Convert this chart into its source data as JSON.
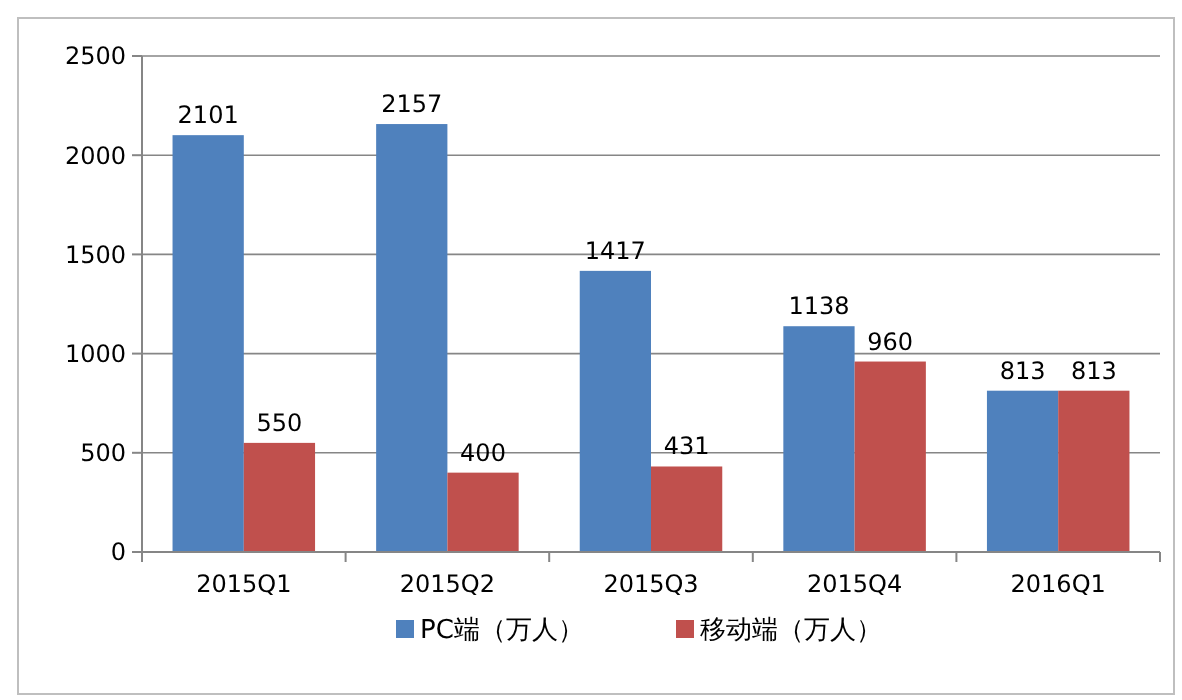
{
  "chart_data": {
    "type": "bar",
    "categories": [
      "2015Q1",
      "2015Q2",
      "2015Q3",
      "2015Q4",
      "2016Q1"
    ],
    "series": [
      {
        "name": "PC端（万人）",
        "color": "#4f81bd",
        "values": [
          2101,
          2157,
          1417,
          1138,
          813
        ]
      },
      {
        "name": "移动端（万人）",
        "color": "#c0504d",
        "values": [
          550,
          400,
          431,
          960,
          813
        ]
      }
    ],
    "ylim": [
      0,
      2500
    ],
    "yticks": [
      0,
      500,
      1000,
      1500,
      2000,
      2500
    ],
    "grid": "y",
    "legend": "bottom",
    "data_labels": true
  }
}
